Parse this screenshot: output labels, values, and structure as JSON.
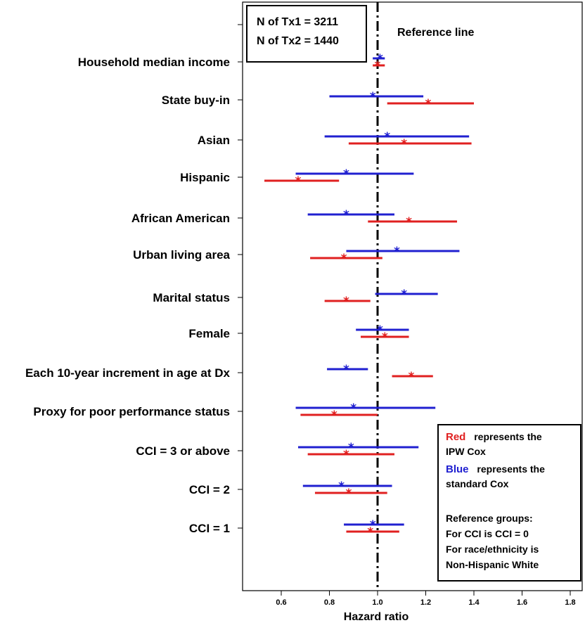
{
  "chart_data": {
    "type": "forest",
    "xlabel": "Hazard ratio",
    "xlim": [
      0.45,
      1.82
    ],
    "xticks": [
      "0.6",
      "0.8",
      "1.0",
      "1.2",
      "1.4",
      "1.6",
      "1.8"
    ],
    "xtick_values": [
      0.6,
      0.8,
      1.0,
      1.2,
      1.4,
      1.6,
      1.8
    ],
    "reference_value": 1.0,
    "reference_label": "Reference line",
    "categories": [
      "Household median income",
      "State buy-in",
      "Asian",
      "Hispanic",
      "African American",
      "Urban living area",
      "Marital status",
      "Female",
      "Each 10-year increment in age at Dx",
      "Proxy for poor performance status",
      "CCI = 3 or above",
      "CCI = 2",
      "CCI = 1"
    ],
    "series": [
      {
        "name": "Standard Cox",
        "color": "#2020d0",
        "points": [
          {
            "hr": 1.01,
            "lo": 0.98,
            "hi": 1.03
          },
          {
            "hr": 0.98,
            "lo": 0.8,
            "hi": 1.19
          },
          {
            "hr": 1.04,
            "lo": 0.78,
            "hi": 1.38
          },
          {
            "hr": 0.87,
            "lo": 0.66,
            "hi": 1.15
          },
          {
            "hr": 0.87,
            "lo": 0.71,
            "hi": 1.07
          },
          {
            "hr": 1.08,
            "lo": 0.87,
            "hi": 1.34
          },
          {
            "hr": 1.11,
            "lo": 0.99,
            "hi": 1.25
          },
          {
            "hr": 1.01,
            "lo": 0.91,
            "hi": 1.13
          },
          {
            "hr": 0.87,
            "lo": 0.79,
            "hi": 0.96
          },
          {
            "hr": 0.9,
            "lo": 0.66,
            "hi": 1.24
          },
          {
            "hr": 0.89,
            "lo": 0.67,
            "hi": 1.17
          },
          {
            "hr": 0.85,
            "lo": 0.69,
            "hi": 1.06
          },
          {
            "hr": 0.98,
            "lo": 0.86,
            "hi": 1.11
          }
        ]
      },
      {
        "name": "IPW Cox",
        "color": "#e02020",
        "points": [
          {
            "hr": 1.0,
            "lo": 0.98,
            "hi": 1.03
          },
          {
            "hr": 1.21,
            "lo": 1.04,
            "hi": 1.4
          },
          {
            "hr": 1.11,
            "lo": 0.88,
            "hi": 1.39
          },
          {
            "hr": 0.67,
            "lo": 0.53,
            "hi": 0.84
          },
          {
            "hr": 1.13,
            "lo": 0.96,
            "hi": 1.33
          },
          {
            "hr": 0.86,
            "lo": 0.72,
            "hi": 1.02
          },
          {
            "hr": 0.87,
            "lo": 0.78,
            "hi": 0.97
          },
          {
            "hr": 1.03,
            "lo": 0.93,
            "hi": 1.13
          },
          {
            "hr": 1.14,
            "lo": 1.06,
            "hi": 1.23
          },
          {
            "hr": 0.82,
            "lo": 0.68,
            "hi": 1.0
          },
          {
            "hr": 0.87,
            "lo": 0.71,
            "hi": 1.07
          },
          {
            "hr": 0.88,
            "lo": 0.74,
            "hi": 1.04
          },
          {
            "hr": 0.97,
            "lo": 0.87,
            "hi": 1.09
          }
        ]
      }
    ],
    "info_box": {
      "line1": "N of Tx1 = 3211",
      "line2": "N of Tx2 = 1440"
    },
    "legend": {
      "red_word": "Red",
      "red_text": "represents the",
      "red_text2": "IPW Cox",
      "blue_word": "Blue",
      "blue_text": "represents the",
      "blue_text2": "standard Cox",
      "ref1": "Reference groups:",
      "ref2": "For CCI is CCI = 0",
      "ref3": "For race/ethnicity is",
      "ref4": "Non-Hispanic White",
      "red_color": "#e02020",
      "blue_color": "#2020d0"
    }
  }
}
